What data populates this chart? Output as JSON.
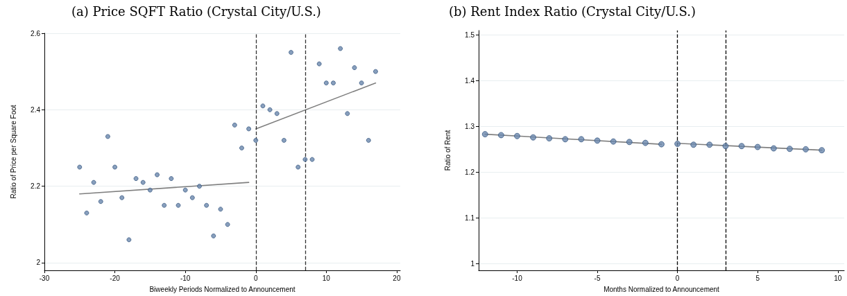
{
  "chart_data": [
    {
      "type": "scatter",
      "title": "(a) Price SQFT Ratio (Crystal City/U.S.)",
      "xlabel": "Biweekly Periods Normalized to Announcement",
      "ylabel": "Ratio of Price per Square Foot",
      "xlim": [
        -30,
        20.5
      ],
      "xticks": [
        -30,
        -20,
        -10,
        0,
        10,
        20
      ],
      "ylim": [
        1.98,
        2.6
      ],
      "yticks": [
        2,
        2.2,
        2.4,
        2.6
      ],
      "grid": "y",
      "ref_lines": [
        {
          "axis": "x",
          "value": 0,
          "color": "#333333",
          "line_style": "dashed"
        },
        {
          "axis": "x",
          "value": 7,
          "color": "#333333",
          "line_style": "dashed"
        }
      ],
      "series": [
        {
          "marker": "circle",
          "color": "#6a87ad",
          "x": [
            -25,
            -24,
            -23,
            -22,
            -21,
            -20,
            -19,
            -18,
            -17,
            -16,
            -15,
            -14,
            -13,
            -12,
            -11,
            -10,
            -9,
            -8,
            -7,
            -6,
            -5,
            -4,
            -3,
            -2,
            -1,
            0,
            1,
            2,
            3,
            4,
            5,
            6,
            7,
            8,
            9,
            10,
            11,
            12,
            13,
            14,
            15,
            16,
            17
          ],
          "values": [
            2.25,
            2.13,
            2.21,
            2.16,
            2.33,
            2.25,
            2.17,
            2.06,
            2.22,
            2.21,
            2.19,
            2.23,
            2.15,
            2.22,
            2.15,
            2.19,
            2.17,
            2.2,
            2.15,
            2.07,
            2.14,
            2.1,
            2.36,
            2.3,
            2.35,
            2.32,
            2.41,
            2.4,
            2.39,
            2.32,
            2.55,
            2.25,
            2.27,
            2.27,
            2.52,
            2.47,
            2.47,
            2.56,
            2.39,
            2.51,
            2.47,
            2.32,
            2.5
          ]
        },
        {
          "type": "line",
          "marker": "none",
          "color": "#7f7f7f",
          "line_style": "solid",
          "x": [
            -25,
            -1
          ],
          "values": [
            2.18,
            2.21
          ]
        },
        {
          "type": "line",
          "marker": "none",
          "color": "#7f7f7f",
          "line_style": "solid",
          "x": [
            0,
            17
          ],
          "values": [
            2.35,
            2.47
          ]
        }
      ]
    },
    {
      "type": "scatter",
      "title": "(b) Rent Index Ratio (Crystal City/U.S.)",
      "xlabel": "Months Normalized to Announcement",
      "ylabel": "Ratio of Rent",
      "xlim": [
        -12.4,
        10.4
      ],
      "xticks": [
        -10,
        -5,
        0,
        5,
        10
      ],
      "ylim": [
        0.985,
        1.51
      ],
      "yticks": [
        1,
        1.1,
        1.2,
        1.3,
        1.4,
        1.5
      ],
      "grid": "y",
      "ref_lines": [
        {
          "axis": "x",
          "value": 0,
          "color": "#000000",
          "line_style": "dashed"
        },
        {
          "axis": "x",
          "value": 3,
          "color": "#000000",
          "line_style": "dashed"
        }
      ],
      "series": [
        {
          "type": "line",
          "marker": "none",
          "color": "#7f7f7f",
          "line_style": "solid",
          "x": [
            -12,
            -1
          ],
          "values": [
            1.283,
            1.261
          ]
        },
        {
          "type": "line",
          "marker": "none",
          "color": "#7f7f7f",
          "line_style": "solid",
          "x": [
            0,
            9
          ],
          "values": [
            1.263,
            1.248
          ]
        },
        {
          "marker": "circle",
          "color": "#6a87ad",
          "x": [
            -12,
            -11,
            -10,
            -9,
            -8,
            -7,
            -6,
            -5,
            -4,
            -3,
            -2,
            -1,
            0,
            1,
            2,
            3,
            4,
            5,
            6,
            7,
            8,
            9
          ],
          "values": [
            1.283,
            1.281,
            1.279,
            1.276,
            1.274,
            1.272,
            1.272,
            1.269,
            1.267,
            1.266,
            1.264,
            1.261,
            1.262,
            1.26,
            1.26,
            1.257,
            1.257,
            1.255,
            1.252,
            1.251,
            1.25,
            1.248
          ]
        }
      ]
    }
  ]
}
